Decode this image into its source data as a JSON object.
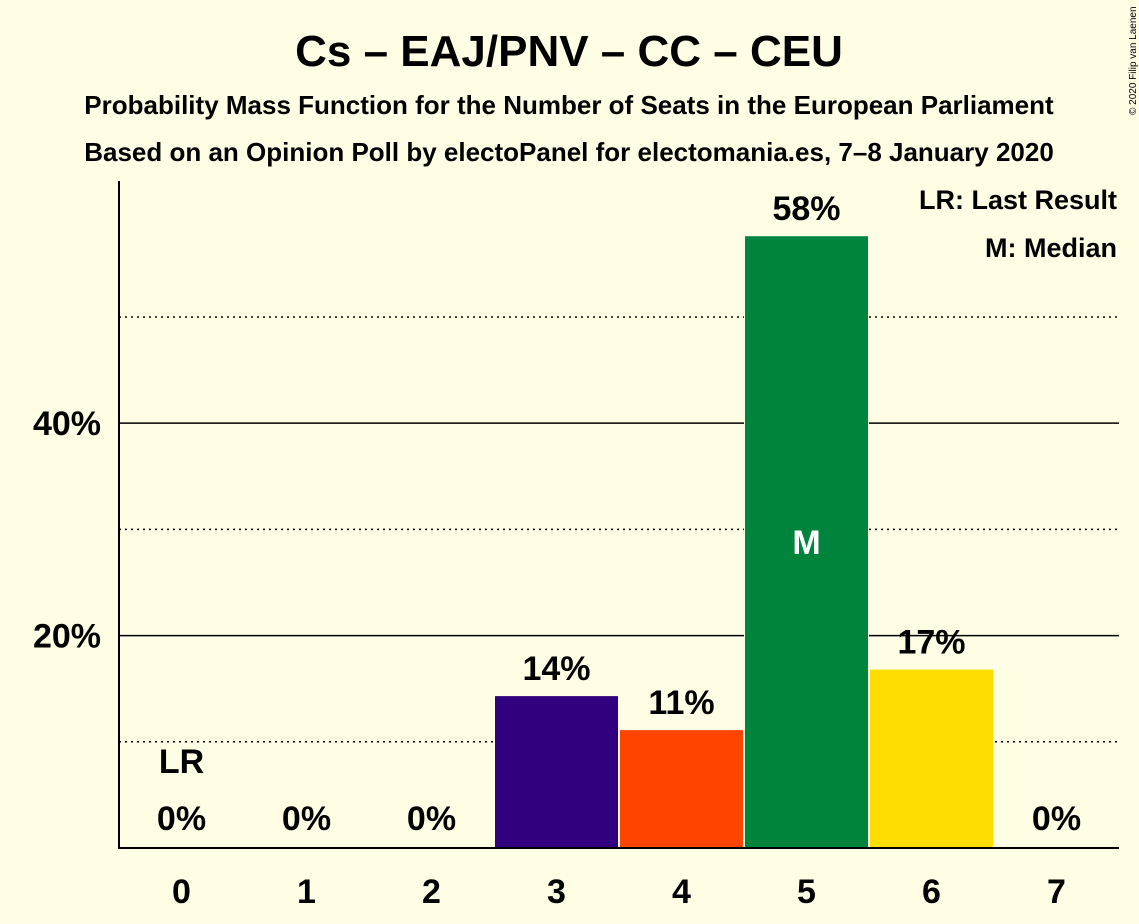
{
  "chart_data": {
    "type": "bar",
    "title": "Cs – EAJ/PNV – CC – CEU",
    "subtitle_lines": [
      "Probability Mass Function for the Number of Seats in the European Parliament",
      "Based on an Opinion Poll by electoPanel for electomania.es, 7–8 January 2020"
    ],
    "copyright": "© 2020 Filip van Laenen",
    "categories": [
      "0",
      "1",
      "2",
      "3",
      "4",
      "5",
      "6",
      "7"
    ],
    "values": [
      0,
      0,
      0,
      14.3,
      11.1,
      57.6,
      16.8,
      0
    ],
    "value_labels": [
      "0%",
      "0%",
      "0%",
      "14%",
      "11%",
      "58%",
      "17%",
      "0%"
    ],
    "bar_colors": [
      "#FFFEE5",
      "#FFFEE5",
      "#FFFEE5",
      "#30007F",
      "#FF4400",
      "#00843C",
      "#FFDD00",
      "#FFFEE5"
    ],
    "ylim": [
      0,
      62.8
    ],
    "yticks": [
      20,
      40
    ],
    "ytick_labels": [
      "20%",
      "40%"
    ],
    "minor_gridlines": [
      10,
      30,
      50
    ],
    "major_gridlines": [
      20,
      40
    ],
    "last_result_index": 0,
    "last_result_marker": "LR",
    "median_index": 5,
    "median_marker": "M",
    "legend": [
      "LR: Last Result",
      "M: Median"
    ],
    "legend_position": "top-right"
  }
}
